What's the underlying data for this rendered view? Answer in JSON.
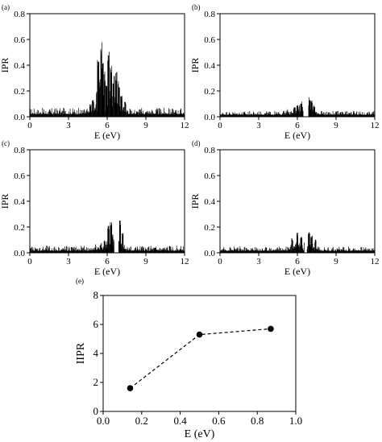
{
  "chart_data": [
    {
      "panel_label": "(a)",
      "type": "bar",
      "xlabel": "E (eV)",
      "ylabel": "IPR",
      "xlim": [
        0,
        12
      ],
      "ylim": [
        0,
        0.8
      ],
      "xticks": [
        0,
        3,
        6,
        9,
        12
      ],
      "yticks": [
        0.0,
        0.2,
        0.4,
        0.6,
        0.8
      ],
      "xtick_labels": [
        "0",
        "3",
        "6",
        "9",
        "12"
      ],
      "ytick_labels": [
        "0.0",
        "0.2",
        "0.4",
        "0.6",
        "0.8"
      ],
      "peaks": [
        {
          "x": 5.3,
          "y": 0.48
        },
        {
          "x": 5.45,
          "y": 0.3
        },
        {
          "x": 5.55,
          "y": 0.64
        },
        {
          "x": 5.65,
          "y": 0.42
        },
        {
          "x": 5.8,
          "y": 0.36
        },
        {
          "x": 5.95,
          "y": 0.28
        },
        {
          "x": 6.1,
          "y": 0.52
        },
        {
          "x": 6.3,
          "y": 0.43
        },
        {
          "x": 6.5,
          "y": 0.32
        },
        {
          "x": 6.7,
          "y": 0.35
        },
        {
          "x": 6.9,
          "y": 0.28
        },
        {
          "x": 7.1,
          "y": 0.18
        },
        {
          "x": 7.4,
          "y": 0.12
        },
        {
          "x": 4.9,
          "y": 0.15
        },
        {
          "x": 4.7,
          "y": 0.1
        }
      ],
      "baseline": 0.02,
      "noise": 0.05,
      "gap": [],
      "center_boost": 0.06
    },
    {
      "panel_label": "(b)",
      "type": "bar",
      "xlabel": "E (eV)",
      "ylabel": "IPR",
      "xlim": [
        0,
        12
      ],
      "ylim": [
        0,
        0.8
      ],
      "xticks": [
        0,
        3,
        6,
        9,
        12
      ],
      "yticks": [
        0.0,
        0.2,
        0.4,
        0.6,
        0.8
      ],
      "xtick_labels": [
        "0",
        "3",
        "6",
        "9",
        "12"
      ],
      "ytick_labels": [
        "0.0",
        "0.2",
        "0.4",
        "0.6",
        "0.8"
      ],
      "peaks": [
        {
          "x": 6.0,
          "y": 0.1
        },
        {
          "x": 6.3,
          "y": 0.12
        },
        {
          "x": 6.95,
          "y": 0.16
        },
        {
          "x": 7.1,
          "y": 0.13
        },
        {
          "x": 7.3,
          "y": 0.1
        },
        {
          "x": 5.8,
          "y": 0.08
        }
      ],
      "baseline": 0.015,
      "noise": 0.03,
      "gap": [
        6.45,
        6.85
      ],
      "center_boost": 0.05
    },
    {
      "panel_label": "(c)",
      "type": "bar",
      "xlabel": "E (eV)",
      "ylabel": "IPR",
      "xlim": [
        0,
        12
      ],
      "ylim": [
        0,
        0.8
      ],
      "xticks": [
        0,
        3,
        6,
        9,
        12
      ],
      "yticks": [
        0.0,
        0.2,
        0.4,
        0.6,
        0.8
      ],
      "xtick_labels": [
        "0",
        "3",
        "6",
        "9",
        "12"
      ],
      "ytick_labels": [
        "0.0",
        "0.2",
        "0.4",
        "0.6",
        "0.8"
      ],
      "peaks": [
        {
          "x": 6.1,
          "y": 0.22
        },
        {
          "x": 6.3,
          "y": 0.25
        },
        {
          "x": 6.4,
          "y": 0.15
        },
        {
          "x": 7.0,
          "y": 0.26
        },
        {
          "x": 7.2,
          "y": 0.16
        },
        {
          "x": 5.8,
          "y": 0.1
        }
      ],
      "baseline": 0.015,
      "noise": 0.04,
      "gap": [
        6.55,
        6.9
      ],
      "center_boost": 0.06
    },
    {
      "panel_label": "(d)",
      "type": "bar",
      "xlabel": "E (eV)",
      "ylabel": "IPR",
      "xlim": [
        0,
        12
      ],
      "ylim": [
        0,
        0.8
      ],
      "xticks": [
        0,
        3,
        6,
        9,
        12
      ],
      "yticks": [
        0.0,
        0.2,
        0.4,
        0.6,
        0.8
      ],
      "xtick_labels": [
        "0",
        "3",
        "6",
        "9",
        "12"
      ],
      "ytick_labels": [
        "0.0",
        "0.2",
        "0.4",
        "0.6",
        "0.8"
      ],
      "peaks": [
        {
          "x": 5.6,
          "y": 0.12
        },
        {
          "x": 6.0,
          "y": 0.16
        },
        {
          "x": 6.3,
          "y": 0.13
        },
        {
          "x": 6.9,
          "y": 0.17
        },
        {
          "x": 7.1,
          "y": 0.14
        },
        {
          "x": 7.4,
          "y": 0.11
        }
      ],
      "baseline": 0.015,
      "noise": 0.035,
      "gap": [
        6.55,
        6.75
      ],
      "center_boost": 0.04
    },
    {
      "panel_label": "(e)",
      "type": "line",
      "xlabel": "E (eV)",
      "ylabel": "IIPR",
      "xlim": [
        0.0,
        1.0
      ],
      "ylim": [
        0,
        8
      ],
      "xticks": [
        0.0,
        0.2,
        0.4,
        0.6,
        0.8,
        1.0
      ],
      "yticks": [
        0,
        2,
        4,
        6,
        8
      ],
      "xtick_labels": [
        "0.0",
        "0.2",
        "0.4",
        "0.6",
        "0.8",
        "1.0"
      ],
      "ytick_labels": [
        "0",
        "2",
        "4",
        "6",
        "8"
      ],
      "series": [
        {
          "x": [
            0.14,
            0.5,
            0.87
          ],
          "y": [
            1.6,
            5.3,
            5.7
          ]
        }
      ]
    }
  ]
}
